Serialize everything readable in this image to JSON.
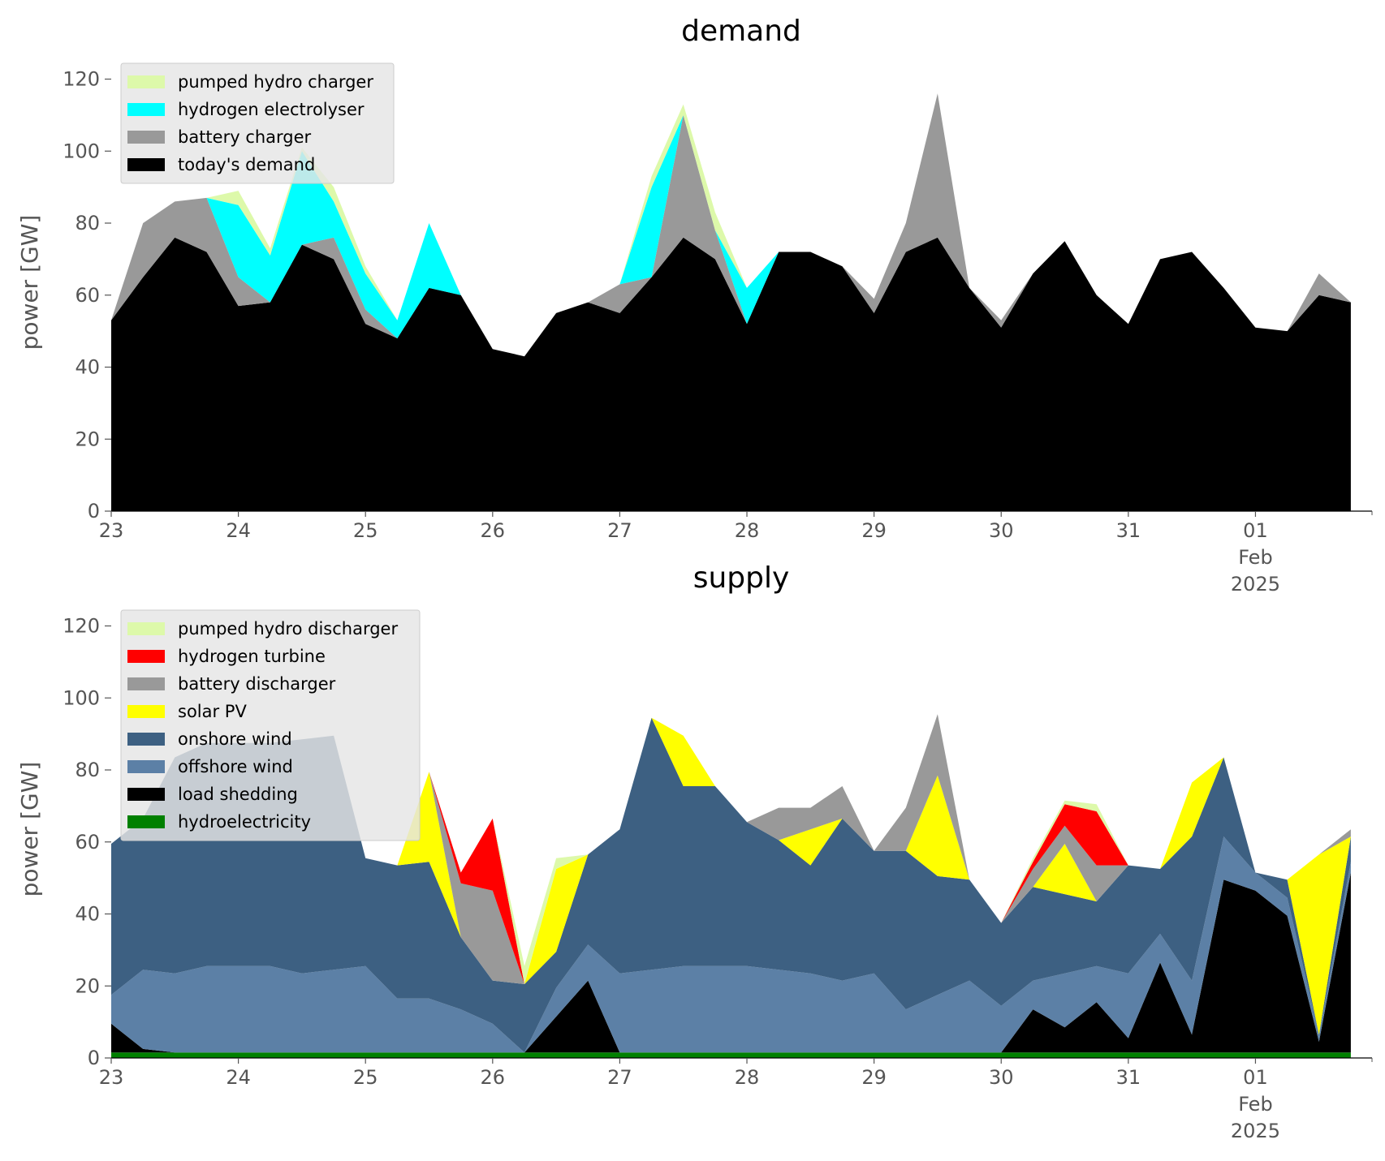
{
  "chart_data": [
    {
      "type": "area",
      "title": "demand",
      "ylabel": "power [GW]",
      "xlabel": "",
      "xlim": [
        "2025-01-23",
        "2025-02-01 22:00"
      ],
      "ylim": [
        0,
        128
      ],
      "yticks": [
        0,
        20,
        40,
        60,
        80,
        100,
        120
      ],
      "xticks": [
        {
          "at": "2025-01-23",
          "label": [
            "23"
          ]
        },
        {
          "at": "2025-01-24",
          "label": [
            "24"
          ]
        },
        {
          "at": "2025-01-25",
          "label": [
            "25"
          ]
        },
        {
          "at": "2025-01-26",
          "label": [
            "26"
          ]
        },
        {
          "at": "2025-01-27",
          "label": [
            "27"
          ]
        },
        {
          "at": "2025-01-28",
          "label": [
            "28"
          ]
        },
        {
          "at": "2025-01-29",
          "label": [
            "29"
          ]
        },
        {
          "at": "2025-01-30",
          "label": [
            "30"
          ]
        },
        {
          "at": "2025-01-31",
          "label": [
            "31"
          ]
        },
        {
          "at": "2025-02-01",
          "label": [
            "01",
            "Feb",
            "2025"
          ]
        }
      ],
      "grid": false,
      "legend_position": "top-left",
      "legend": [
        "pumped hydro charger",
        "hydrogen electrolyser",
        "battery charger",
        "today's demand"
      ],
      "x": [
        "2025-01-23 00:00",
        "2025-01-23 06:00",
        "2025-01-23 12:00",
        "2025-01-23 18:00",
        "2025-01-24 00:00",
        "2025-01-24 06:00",
        "2025-01-24 12:00",
        "2025-01-24 18:00",
        "2025-01-25 00:00",
        "2025-01-25 06:00",
        "2025-01-25 12:00",
        "2025-01-25 18:00",
        "2025-01-26 00:00",
        "2025-01-26 06:00",
        "2025-01-26 12:00",
        "2025-01-26 18:00",
        "2025-01-27 00:00",
        "2025-01-27 06:00",
        "2025-01-27 12:00",
        "2025-01-27 18:00",
        "2025-01-28 00:00",
        "2025-01-28 06:00",
        "2025-01-28 12:00",
        "2025-01-28 18:00",
        "2025-01-29 00:00",
        "2025-01-29 06:00",
        "2025-01-29 12:00",
        "2025-01-29 18:00",
        "2025-01-30 00:00",
        "2025-01-30 06:00",
        "2025-01-30 12:00",
        "2025-01-30 18:00",
        "2025-01-31 00:00",
        "2025-01-31 06:00",
        "2025-01-31 12:00",
        "2025-01-31 18:00",
        "2025-02-01 00:00",
        "2025-02-01 06:00",
        "2025-02-01 12:00",
        "2025-02-01 18:00"
      ],
      "series": [
        {
          "name": "today's demand",
          "color": "#000000",
          "values": [
            53,
            65,
            76,
            72,
            57,
            58,
            74,
            70,
            52,
            48,
            62,
            60,
            45,
            43,
            55,
            58,
            55,
            65,
            76,
            70,
            52,
            72,
            72,
            68,
            55,
            72,
            76,
            62,
            51,
            66,
            75,
            60,
            52,
            70,
            72,
            62,
            51,
            50,
            60,
            58
          ]
        },
        {
          "name": "battery charger",
          "color": "#999999",
          "values": [
            0,
            15,
            10,
            15,
            8,
            0,
            0,
            6,
            4,
            0,
            0,
            0,
            0,
            0,
            0,
            0,
            8,
            0,
            34,
            8,
            0,
            0,
            0,
            0,
            4,
            8,
            40,
            0,
            2,
            0,
            0,
            0,
            0,
            0,
            0,
            0,
            0,
            0,
            6,
            0
          ]
        },
        {
          "name": "hydrogen electrolyser",
          "color": "#00ffff",
          "values": [
            0,
            0,
            0,
            0,
            20,
            13,
            26,
            10,
            10,
            5,
            18,
            0,
            0,
            0,
            0,
            0,
            0,
            25,
            0,
            0,
            10,
            0,
            0,
            0,
            0,
            0,
            0,
            0,
            0,
            0,
            0,
            0,
            0,
            0,
            0,
            0,
            0,
            0,
            0,
            0
          ]
        },
        {
          "name": "pumped hydro charger",
          "color": "#ddf9aa",
          "values": [
            0,
            0,
            0,
            0,
            4,
            2,
            1,
            4,
            2,
            0,
            0,
            0,
            0,
            0,
            0,
            0,
            0,
            3,
            3,
            5,
            0,
            0,
            0,
            0,
            0,
            0,
            0,
            0,
            0,
            0,
            0,
            0,
            0,
            0,
            0,
            0,
            0,
            0,
            0,
            0
          ]
        }
      ]
    },
    {
      "type": "area",
      "title": "supply",
      "ylabel": "power [GW]",
      "xlabel": "",
      "xlim": [
        "2025-01-23",
        "2025-02-01 22:00"
      ],
      "ylim": [
        0,
        128
      ],
      "yticks": [
        0,
        20,
        40,
        60,
        80,
        100,
        120
      ],
      "xticks": [
        {
          "at": "2025-01-23",
          "label": [
            "23"
          ]
        },
        {
          "at": "2025-01-24",
          "label": [
            "24"
          ]
        },
        {
          "at": "2025-01-25",
          "label": [
            "25"
          ]
        },
        {
          "at": "2025-01-26",
          "label": [
            "26"
          ]
        },
        {
          "at": "2025-01-27",
          "label": [
            "27"
          ]
        },
        {
          "at": "2025-01-28",
          "label": [
            "28"
          ]
        },
        {
          "at": "2025-01-29",
          "label": [
            "29"
          ]
        },
        {
          "at": "2025-01-30",
          "label": [
            "30"
          ]
        },
        {
          "at": "2025-01-31",
          "label": [
            "31"
          ]
        },
        {
          "at": "2025-02-01",
          "label": [
            "01",
            "Feb",
            "2025"
          ]
        }
      ],
      "grid": false,
      "legend_position": "top-left",
      "legend": [
        "pumped hydro discharger",
        "hydrogen turbine",
        "battery discharger",
        "solar PV",
        "onshore wind",
        "offshore wind",
        "load shedding",
        "hydroelectricity"
      ],
      "x": [
        "2025-01-23 00:00",
        "2025-01-23 06:00",
        "2025-01-23 12:00",
        "2025-01-23 18:00",
        "2025-01-24 00:00",
        "2025-01-24 06:00",
        "2025-01-24 12:00",
        "2025-01-24 18:00",
        "2025-01-25 00:00",
        "2025-01-25 06:00",
        "2025-01-25 12:00",
        "2025-01-25 18:00",
        "2025-01-26 00:00",
        "2025-01-26 06:00",
        "2025-01-26 12:00",
        "2025-01-26 18:00",
        "2025-01-27 00:00",
        "2025-01-27 06:00",
        "2025-01-27 12:00",
        "2025-01-27 18:00",
        "2025-01-28 00:00",
        "2025-01-28 06:00",
        "2025-01-28 12:00",
        "2025-01-28 18:00",
        "2025-01-29 00:00",
        "2025-01-29 06:00",
        "2025-01-29 12:00",
        "2025-01-29 18:00",
        "2025-01-30 00:00",
        "2025-01-30 06:00",
        "2025-01-30 12:00",
        "2025-01-30 18:00",
        "2025-01-31 00:00",
        "2025-01-31 06:00",
        "2025-01-31 12:00",
        "2025-01-31 18:00",
        "2025-02-01 00:00",
        "2025-02-01 06:00",
        "2025-02-01 12:00",
        "2025-02-01 18:00"
      ],
      "series": [
        {
          "name": "hydroelectricity",
          "color": "#008000",
          "values": [
            1.5,
            1.5,
            1.5,
            1.5,
            1.5,
            1.5,
            1.5,
            1.5,
            1.5,
            1.5,
            1.5,
            1.5,
            1.5,
            1.5,
            1.5,
            1.5,
            1.5,
            1.5,
            1.5,
            1.5,
            1.5,
            1.5,
            1.5,
            1.5,
            1.5,
            1.5,
            1.5,
            1.5,
            1.5,
            1.5,
            1.5,
            1.5,
            1.5,
            1.5,
            1.5,
            1.5,
            1.5,
            1.5,
            1.5,
            1.5
          ]
        },
        {
          "name": "load shedding",
          "color": "#000000",
          "values": [
            8,
            1,
            0,
            0,
            0,
            0,
            0,
            0,
            0,
            0,
            0,
            0,
            0,
            0,
            10,
            20,
            0,
            0,
            0,
            0,
            0,
            0,
            0,
            0,
            0,
            0,
            0,
            0,
            0,
            12,
            7,
            14,
            4,
            25,
            5,
            48,
            45,
            38,
            3,
            50
          ]
        },
        {
          "name": "offshore wind",
          "color": "#5c80a6",
          "values": [
            8,
            22,
            22,
            24,
            24,
            24,
            22,
            23,
            24,
            15,
            15,
            12,
            8,
            0,
            8,
            10,
            22,
            23,
            24,
            24,
            24,
            23,
            22,
            20,
            22,
            12,
            16,
            20,
            13,
            8,
            15,
            10,
            18,
            8,
            15,
            12,
            5,
            5,
            2,
            3
          ]
        },
        {
          "name": "onshore wind",
          "color": "#3d6082",
          "values": [
            42,
            42,
            60,
            62,
            62,
            62,
            65,
            65,
            30,
            37,
            38,
            20,
            12,
            19,
            10,
            25,
            40,
            70,
            50,
            50,
            40,
            36,
            30,
            45,
            34,
            44,
            33,
            28,
            23,
            26,
            22,
            18,
            30,
            18,
            40,
            22,
            0,
            5,
            0,
            7
          ]
        },
        {
          "name": "solar PV",
          "color": "#ffff00",
          "values": [
            0,
            0,
            0,
            0,
            0,
            0,
            0,
            0,
            0,
            0,
            25,
            0,
            0,
            0,
            23,
            0,
            0,
            0,
            14,
            0,
            0,
            0,
            10,
            0,
            0,
            0,
            28,
            0,
            0,
            0,
            14,
            0,
            0,
            0,
            15,
            0,
            0,
            0,
            50,
            0
          ]
        },
        {
          "name": "battery discharger",
          "color": "#999999",
          "values": [
            0,
            0,
            0,
            0,
            0,
            0,
            0,
            0,
            0,
            0,
            0,
            15,
            25,
            0,
            0,
            0,
            0,
            0,
            0,
            0,
            0,
            9,
            6,
            9,
            0,
            12,
            17,
            0,
            0,
            5,
            5,
            10,
            0,
            0,
            0,
            0,
            0,
            0,
            0,
            2
          ]
        },
        {
          "name": "hydrogen turbine",
          "color": "#ff0000",
          "values": [
            0,
            0,
            0,
            0,
            0,
            0,
            0,
            0,
            0,
            0,
            0,
            3,
            20,
            0,
            0,
            0,
            0,
            0,
            0,
            0,
            0,
            0,
            0,
            0,
            0,
            0,
            0,
            0,
            0,
            2,
            6,
            15,
            0,
            0,
            0,
            0,
            0,
            0,
            0,
            0
          ]
        },
        {
          "name": "pumped hydro discharger",
          "color": "#ddf9aa",
          "values": [
            0,
            0,
            0,
            0,
            0,
            0,
            0,
            0,
            0,
            0,
            0,
            0,
            0,
            5,
            3,
            0,
            0,
            0,
            0,
            0,
            0,
            0,
            0,
            0,
            0,
            0,
            0,
            0,
            0,
            1,
            1,
            2,
            0,
            0,
            0,
            0,
            0,
            0,
            0,
            0
          ]
        }
      ]
    }
  ]
}
